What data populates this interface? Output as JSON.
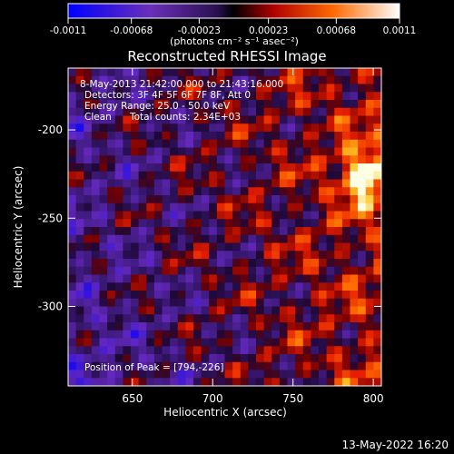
{
  "colorbar": {
    "ticks": [
      "-0.0011",
      "-0.00068",
      "-0.00023",
      "0.00023",
      "0.00068",
      "0.0011"
    ],
    "tick_values": [
      -0.0011,
      -0.00068,
      -0.00023,
      0.00023,
      0.00068,
      0.0011
    ],
    "range": [
      -0.0011,
      0.0011
    ],
    "units_label": "(photons cm⁻² s⁻¹ asec⁻²)"
  },
  "chart_data": {
    "type": "heatmap",
    "title": "Reconstructed RHESSI Image",
    "xlabel": "Heliocentric X (arcsec)",
    "ylabel": "Heliocentric Y (arcsec)",
    "xlim": [
      610,
      805
    ],
    "ylim": [
      -345,
      -165
    ],
    "x_ticks": [
      650,
      700,
      750,
      800
    ],
    "y_ticks": [
      -200,
      -250,
      -300
    ],
    "annotations": [
      "8-May-2013 21:42:00.000 to 21:43:16.000",
      "Detectors: 3F 4F 5F 6F 7F 8F, Att 0",
      "Energy Range: 25.0 - 50.0 keV",
      "Clean",
      "Total counts: 2.34E+03"
    ],
    "peak_label": "Position of Peak = [794,-226]",
    "peak": [
      794,
      -226
    ],
    "colormap": [
      "#0000ff",
      "#6a2fb8",
      "#3a1a6a",
      "#000000",
      "#c00000",
      "#ff6a00",
      "#ffffff"
    ]
  },
  "footer": {
    "timestamp": "13-May-2022 16:20"
  }
}
